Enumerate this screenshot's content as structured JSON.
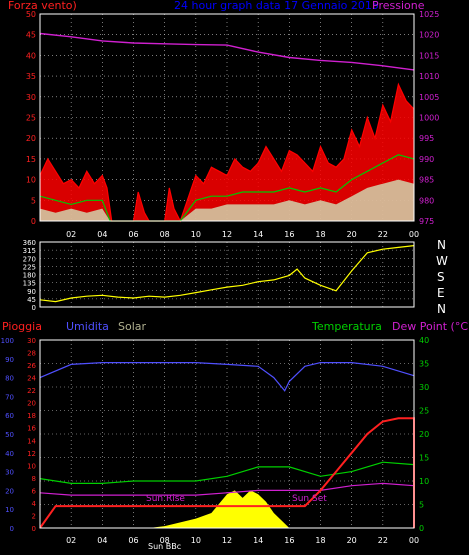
{
  "colors": {
    "background": "#000000",
    "frame": "#ffffff",
    "grid": "#c8c8c8",
    "title": "#0000ff",
    "wind_label": "#ff2020",
    "pressure": "#d020d0",
    "wind_gust": "#ff0000",
    "wind_avg": "#00c800",
    "wind_low": "#d0ffd0",
    "direction": "#ffff00",
    "humidity": "#5050ff",
    "solar": "#ffff00",
    "temperature": "#00d000",
    "dew_point": "#d020d0",
    "rain": "#ff2020",
    "solar_label": "#b0b090",
    "compass": "#ffffff",
    "x_ticks": "#ffffff"
  },
  "header": {
    "wind_label": "Forza vento)",
    "title": "24 hour graph data 17 Gennaio 2015",
    "pressure_label": "Pressione"
  },
  "compass": [
    "N",
    "W",
    "S",
    "E",
    "N"
  ],
  "bottom_labels": {
    "rain": "Pioggia",
    "humidity": "Umidita",
    "solar": "Solar",
    "temperature": "Temperatura",
    "dew_point": "Dew Point (°C)"
  },
  "annotations": {
    "sun_rise": "Sun Rise",
    "sun_set": "Sun Set",
    "sun_bbc": "Sun BBc"
  },
  "chart_data": [
    {
      "type": "line",
      "name_hint": "wind-pressure",
      "x_ticks": [
        "02",
        "04",
        "06",
        "08",
        "10",
        "12",
        "14",
        "16",
        "18",
        "20",
        "22",
        "00"
      ],
      "x_tick_hours": [
        2,
        4,
        6,
        8,
        10,
        12,
        14,
        16,
        18,
        20,
        22,
        24
      ],
      "xlim": [
        0,
        24
      ],
      "ylim_left": [
        0,
        50
      ],
      "yticks_left": [
        0,
        5,
        10,
        15,
        20,
        25,
        30,
        35,
        40,
        45,
        50
      ],
      "ylim_right": [
        975,
        1025
      ],
      "yticks_right": [
        975,
        980,
        985,
        990,
        995,
        1000,
        1005,
        1010,
        1015,
        1020,
        1025
      ],
      "grid": true,
      "pressure": {
        "x": [
          0,
          2,
          4,
          6,
          8,
          10,
          12,
          14,
          16,
          18,
          20,
          22,
          24
        ],
        "y": [
          1020.3,
          1019.5,
          1018.5,
          1018,
          1017.8,
          1017.6,
          1017.5,
          1015.8,
          1014.5,
          1013.8,
          1013.3,
          1012.5,
          1011.5
        ]
      },
      "wind_gust": {
        "x": [
          0,
          0.5,
          1,
          1.5,
          2,
          2.5,
          3,
          3.5,
          4,
          4.3,
          4.6,
          6,
          6.3,
          6.7,
          7,
          8,
          8.3,
          8.6,
          9,
          10,
          10.5,
          11,
          11.5,
          12,
          12.5,
          13,
          13.5,
          14,
          14.5,
          15,
          15.5,
          16,
          16.5,
          17,
          17.5,
          18,
          18.5,
          19,
          19.5,
          20,
          20.5,
          21,
          21.5,
          22,
          22.5,
          23,
          23.5,
          24
        ],
        "y": [
          11,
          15,
          12,
          9,
          10,
          8,
          12,
          9,
          11,
          8,
          0,
          0,
          7,
          2,
          0,
          0,
          8,
          3,
          0,
          11,
          9,
          13,
          12,
          11,
          15,
          13,
          12,
          14,
          18,
          15,
          12,
          17,
          16,
          14,
          12,
          18,
          14,
          13,
          15,
          22,
          18,
          25,
          20,
          28,
          24,
          33,
          29,
          27
        ]
      },
      "wind_avg": {
        "x": [
          0,
          1,
          2,
          3,
          4,
          4.5,
          6,
          7,
          8,
          9,
          10,
          11,
          12,
          13,
          14,
          15,
          16,
          17,
          18,
          19,
          20,
          21,
          22,
          23,
          24
        ],
        "y": [
          6,
          5,
          4,
          5,
          5,
          0,
          0,
          0,
          0,
          0,
          5,
          6,
          6,
          7,
          7,
          7,
          8,
          7,
          8,
          7,
          10,
          12,
          14,
          16,
          15
        ]
      },
      "wind_low": {
        "x": [
          0,
          1,
          2,
          3,
          4,
          4.5,
          6,
          7,
          8,
          9,
          10,
          11,
          12,
          13,
          14,
          15,
          16,
          17,
          18,
          19,
          20,
          21,
          22,
          23,
          24
        ],
        "y": [
          3,
          2,
          3,
          2,
          3,
          0,
          0,
          0,
          0,
          0,
          3,
          3,
          4,
          4,
          4,
          4,
          5,
          4,
          5,
          4,
          6,
          8,
          9,
          10,
          9
        ]
      }
    },
    {
      "type": "line",
      "name_hint": "wind-direction",
      "xlim": [
        0,
        24
      ],
      "ylim": [
        0,
        360
      ],
      "yticks": [
        0,
        45,
        90,
        135,
        180,
        225,
        270,
        315,
        360
      ],
      "x": [
        0,
        1,
        2,
        3,
        4,
        5,
        6,
        7,
        8,
        9,
        10,
        11,
        12,
        13,
        14,
        15,
        16,
        16.5,
        17,
        18,
        19,
        20,
        21,
        22,
        23,
        24
      ],
      "y": [
        40,
        30,
        50,
        60,
        65,
        55,
        50,
        60,
        55,
        65,
        80,
        95,
        110,
        120,
        140,
        150,
        175,
        210,
        160,
        120,
        90,
        200,
        300,
        320,
        330,
        340
      ]
    },
    {
      "type": "line",
      "name_hint": "weather",
      "x_ticks": [
        "02",
        "04",
        "06",
        "08",
        "10",
        "12",
        "14",
        "16",
        "18",
        "20",
        "22",
        "00"
      ],
      "x_tick_hours": [
        2,
        4,
        6,
        8,
        10,
        12,
        14,
        16,
        18,
        20,
        22,
        24
      ],
      "xlim": [
        0,
        24
      ],
      "humidity_axis": {
        "ylim": [
          0,
          100
        ],
        "yticks": [
          0,
          10,
          20,
          30,
          40,
          50,
          60,
          70,
          80,
          90,
          100
        ]
      },
      "rain_axis": {
        "ylim": [
          0,
          30
        ],
        "yticks": [
          0,
          2,
          4,
          6,
          8,
          10,
          12,
          14,
          16,
          18,
          20,
          22,
          24,
          26,
          28,
          30
        ]
      },
      "temperature_axis": {
        "ylim": [
          0,
          40
        ],
        "yticks": [
          0,
          5,
          10,
          15,
          20,
          25,
          30,
          35,
          40
        ]
      },
      "humidity": {
        "x": [
          0,
          2,
          4,
          6,
          8,
          10,
          12,
          14,
          15,
          15.7,
          16,
          17,
          18,
          20,
          22,
          24
        ],
        "y": [
          80,
          87,
          88,
          88,
          88,
          88,
          87,
          86,
          80,
          73,
          78,
          86,
          88,
          88,
          86,
          81
        ]
      },
      "temperature": {
        "x": [
          0,
          2,
          4,
          6,
          8,
          10,
          12,
          14,
          16,
          18,
          20,
          22,
          24
        ],
        "y": [
          10.5,
          9.5,
          9.5,
          10,
          10,
          10,
          11,
          13,
          13,
          11,
          12,
          14,
          13.5
        ]
      },
      "dew_point": {
        "x": [
          0,
          2,
          4,
          6,
          8,
          10,
          12,
          14,
          16,
          18,
          20,
          22,
          24
        ],
        "y": [
          7.5,
          7,
          7,
          7,
          7,
          7,
          7.5,
          8,
          8,
          8,
          9,
          9.5,
          9
        ]
      },
      "rain": {
        "x": [
          0,
          1,
          4,
          8,
          12,
          17,
          18,
          19,
          20,
          21,
          22,
          23,
          24,
          24
        ],
        "y": [
          0,
          3.5,
          3.5,
          3.5,
          3.5,
          3.5,
          6,
          9,
          12,
          15,
          17,
          17.5,
          17.5,
          0
        ]
      },
      "solar": {
        "x": [
          7,
          8,
          9,
          10,
          11,
          12,
          12.5,
          13,
          13.5,
          14,
          14.5,
          15,
          16
        ],
        "y": [
          0,
          1,
          3,
          5,
          8,
          18,
          20,
          16,
          20,
          18,
          14,
          8,
          0
        ]
      }
    }
  ]
}
